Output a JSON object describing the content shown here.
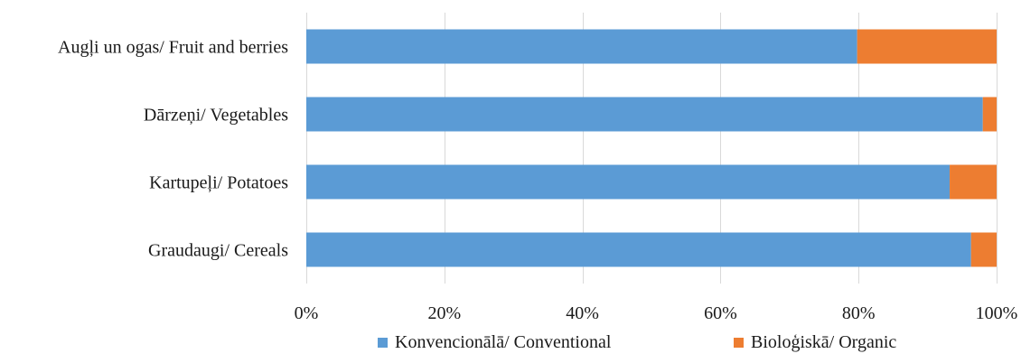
{
  "chart_data": {
    "type": "bar",
    "orientation": "horizontal",
    "stacked": "percent",
    "categories": [
      "Augļi un ogas/ Fruit and berries",
      "Dārzeņi/ Vegetables",
      "Kartupeļi/ Potatoes",
      "Graudaugi/ Cereals"
    ],
    "series": [
      {
        "name": "Konvencionālā/ Conventional",
        "values": [
          79.8,
          98.0,
          93.2,
          96.3
        ],
        "color": "#5b9bd5"
      },
      {
        "name": "Bioloģiskā/ Organic",
        "values": [
          20.2,
          2.0,
          6.8,
          3.7
        ],
        "color": "#ed7d31"
      }
    ],
    "x_ticks": [
      "0%",
      "20%",
      "40%",
      "60%",
      "80%",
      "100%"
    ],
    "xlim": [
      0,
      100
    ],
    "grid": true,
    "legend_position": "bottom"
  }
}
